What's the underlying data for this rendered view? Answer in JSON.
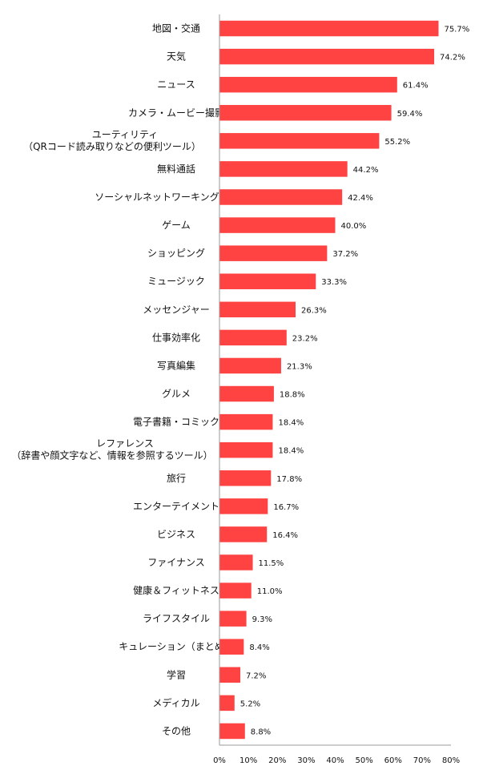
{
  "chart_data": {
    "type": "bar",
    "orientation": "horizontal",
    "categories": [
      "地図・交通",
      "天気",
      "ニュース",
      "カメラ・ムービー撮影",
      "ユーティリティ\n（QRコード読み取りなどの便利ツール）",
      "無料通話",
      "ソーシャルネットワーキング（SNS）",
      "ゲーム",
      "ショッピング",
      "ミュージック",
      "メッセンジャー",
      "仕事効率化",
      "写真編集",
      "グルメ",
      "電子書籍・コミック",
      "レファレンス\n（辞書や顔文字など、情報を参照するツール）",
      "旅行",
      "エンターテイメント",
      "ビジネス",
      "ファイナンス",
      "健康＆フィットネス",
      "ライフスタイル",
      "キュレーション（まとめ）",
      "学習",
      "メディカル",
      "その他"
    ],
    "values": [
      75.7,
      74.2,
      61.4,
      59.4,
      55.2,
      44.2,
      42.4,
      40.0,
      37.2,
      33.3,
      26.3,
      23.2,
      21.3,
      18.8,
      18.4,
      18.4,
      17.8,
      16.7,
      16.4,
      11.5,
      11.0,
      9.3,
      8.4,
      7.2,
      5.2,
      8.8
    ],
    "value_labels": [
      "75.7%",
      "74.2%",
      "61.4%",
      "59.4%",
      "55.2%",
      "44.2%",
      "42.4%",
      "40.0%",
      "37.2%",
      "33.3%",
      "26.3%",
      "23.2%",
      "21.3%",
      "18.8%",
      "18.4%",
      "18.4%",
      "17.8%",
      "16.7%",
      "16.4%",
      "11.5%",
      "11.0%",
      "9.3%",
      "8.4%",
      "7.2%",
      "5.2%",
      "8.8%"
    ],
    "x_ticks": [
      "0%",
      "10%",
      "20%",
      "30%",
      "40%",
      "50%",
      "60%",
      "70%",
      "80%"
    ],
    "xlim": [
      0,
      80
    ],
    "bar_color": "#ff4343",
    "grid": false,
    "legend": "none"
  }
}
